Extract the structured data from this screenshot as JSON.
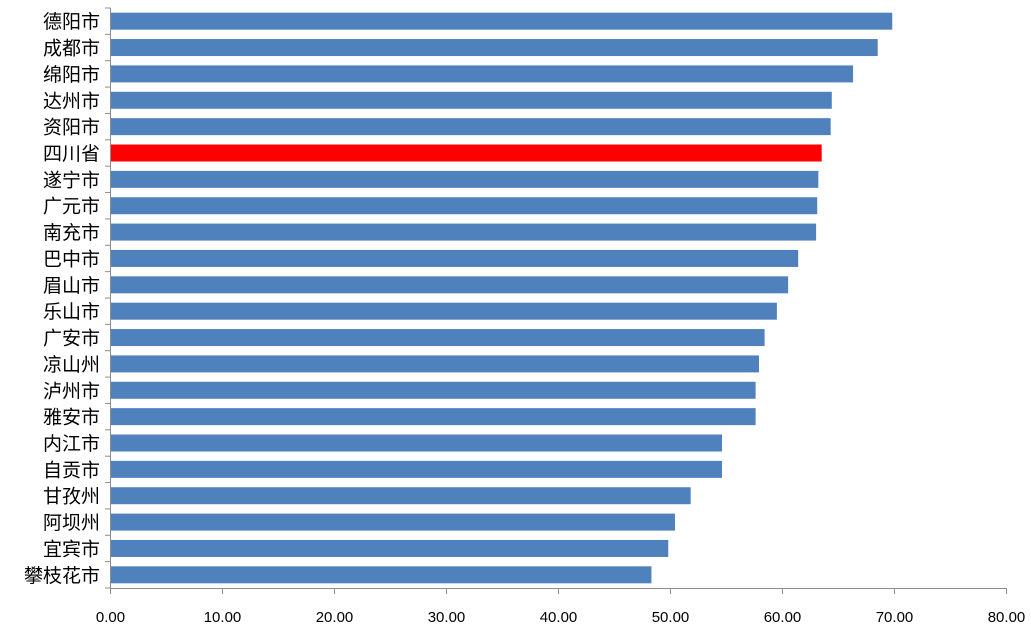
{
  "chart_data": {
    "type": "bar",
    "orientation": "horizontal",
    "categories": [
      "德阳市",
      "成都市",
      "绵阳市",
      "达州市",
      "资阳市",
      "四川省",
      "遂宁市",
      "广元市",
      "南充市",
      "巴中市",
      "眉山市",
      "乐山市",
      "广安市",
      "凉山州",
      "泸州市",
      "雅安市",
      "内江市",
      "自贡市",
      "甘孜州",
      "阿坝州",
      "宜宾市",
      "攀枝花市"
    ],
    "values": [
      69.8,
      68.5,
      66.3,
      64.4,
      64.3,
      63.5,
      63.2,
      63.1,
      63.0,
      61.4,
      60.5,
      59.5,
      58.4,
      57.9,
      57.6,
      57.6,
      54.6,
      54.6,
      51.8,
      50.4,
      49.8,
      48.3
    ],
    "highlight_category": "四川省",
    "xlim": [
      0,
      80
    ],
    "x_ticks": [
      "0.00",
      "10.00",
      "20.00",
      "30.00",
      "40.00",
      "50.00",
      "60.00",
      "70.00",
      "80.00"
    ],
    "grid": false,
    "legend": "none",
    "colors": {
      "bar": "#4F81BD",
      "highlight": "#FF0000",
      "axis": "#8C8C8C"
    }
  }
}
